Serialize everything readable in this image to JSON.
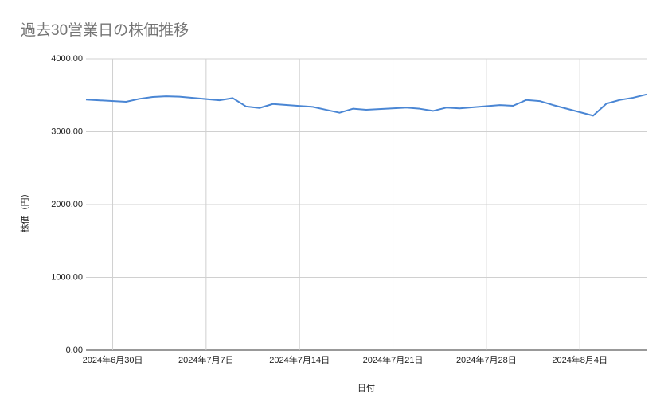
{
  "chart_data": {
    "type": "line",
    "title": "過去30営業日の株価推移",
    "x_label": "日付",
    "y_label": "株価（円）",
    "x": [
      "2024-06-28",
      "2024-07-01",
      "2024-07-02",
      "2024-07-03",
      "2024-07-04",
      "2024-07-05",
      "2024-07-08",
      "2024-07-09",
      "2024-07-10",
      "2024-07-11",
      "2024-07-12",
      "2024-07-15",
      "2024-07-16",
      "2024-07-17",
      "2024-07-18",
      "2024-07-19",
      "2024-07-22",
      "2024-07-23",
      "2024-07-24",
      "2024-07-25",
      "2024-07-26",
      "2024-07-29",
      "2024-07-30",
      "2024-07-31",
      "2024-08-01",
      "2024-08-02",
      "2024-08-05",
      "2024-08-06",
      "2024-08-07",
      "2024-08-08",
      "2024-08-09"
    ],
    "series": [
      {
        "name": "株価",
        "color": "#4a86d4",
        "values": [
          3440,
          3410,
          3450,
          3475,
          3485,
          3480,
          3430,
          3460,
          3345,
          3325,
          3380,
          3340,
          3300,
          3260,
          3315,
          3300,
          3330,
          3315,
          3285,
          3330,
          3320,
          3365,
          3355,
          3435,
          3420,
          3365,
          3220,
          3385,
          3435,
          3465,
          3510
        ]
      }
    ],
    "xlim": [
      "2024-06-28",
      "2024-08-09"
    ],
    "xticks": [
      {
        "value": "2024-06-30",
        "label": "2024年6月30日"
      },
      {
        "value": "2024-07-07",
        "label": "2024年7月7日"
      },
      {
        "value": "2024-07-14",
        "label": "2024年7月14日"
      },
      {
        "value": "2024-07-21",
        "label": "2024年7月21日"
      },
      {
        "value": "2024-07-28",
        "label": "2024年7月28日"
      },
      {
        "value": "2024-08-04",
        "label": "2024年8月4日"
      }
    ],
    "ylim": [
      0,
      4000
    ],
    "yticks": [
      {
        "value": 0,
        "label": "0.00"
      },
      {
        "value": 1000,
        "label": "1000.00"
      },
      {
        "value": 2000,
        "label": "2000.00"
      },
      {
        "value": 3000,
        "label": "3000.00"
      },
      {
        "value": 4000,
        "label": "4000.00"
      }
    ],
    "grid": true
  }
}
